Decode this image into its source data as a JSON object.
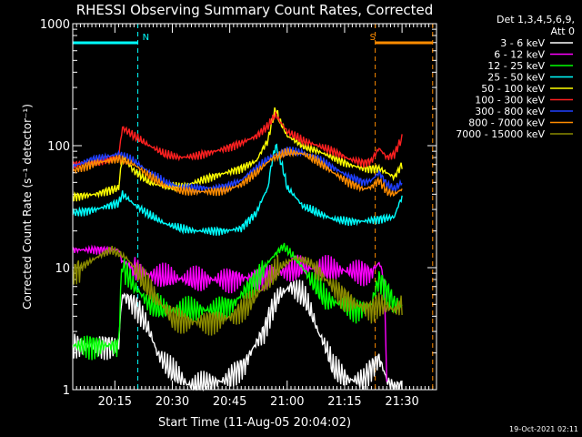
{
  "chart_data": {
    "type": "line",
    "title": "RHESSI Observing Summary Count Rates, Corrected",
    "xlabel": "Start Time (11-Aug-05 20:04:02)",
    "ylabel": "Corrected Count Rate (s⁻¹ detector⁻¹)",
    "yscale": "log",
    "xlim_minutes": [
      0,
      95
    ],
    "ylim": [
      1,
      1000
    ],
    "x_ticks": [
      {
        "minute": 11,
        "label": "20:15"
      },
      {
        "minute": 26,
        "label": "20:30"
      },
      {
        "minute": 41,
        "label": "20:45"
      },
      {
        "minute": 56,
        "label": "21:00"
      },
      {
        "minute": 71,
        "label": "21:15"
      },
      {
        "minute": 86,
        "label": "21:30"
      }
    ],
    "y_ticks": [
      {
        "value": 1,
        "label": "1"
      },
      {
        "value": 10,
        "label": "10"
      },
      {
        "value": 100,
        "label": "100"
      },
      {
        "value": 1000,
        "label": "1000"
      }
    ],
    "legend": {
      "position": "right",
      "header": [
        "Det 1,3,4,5,6,9,",
        "Att 0"
      ]
    },
    "markers": [
      {
        "label": "N",
        "start": 0,
        "end": 17,
        "color": "#00ffff"
      },
      {
        "label": "S",
        "start": 79,
        "end": 94,
        "color": "#ff8c00"
      }
    ],
    "series": [
      {
        "name": "3 - 6 keV",
        "color": "#ffffff",
        "x": [
          0,
          12,
          13,
          16,
          20,
          22,
          25,
          30,
          35,
          40,
          45,
          50,
          54,
          57,
          60,
          64,
          68,
          72,
          76,
          80,
          82,
          84,
          86
        ],
        "y": [
          2.3,
          2.3,
          6,
          5,
          3,
          2,
          1.5,
          1.1,
          1.1,
          1.2,
          1.6,
          3,
          6,
          7,
          6,
          3,
          1.5,
          1.2,
          1.2,
          1.8,
          1.2,
          1,
          1
        ]
      },
      {
        "name": "6 - 12 keV",
        "color": "#ff00ff",
        "x": [
          0,
          12,
          13,
          18,
          22,
          30,
          40,
          50,
          60,
          70,
          78,
          80,
          81,
          82
        ],
        "y": [
          14,
          14,
          11,
          9,
          8.5,
          8,
          8,
          8.5,
          10,
          9.5,
          9,
          11,
          9,
          1
        ]
      },
      {
        "name": "12 - 25 keV",
        "color": "#00ff00",
        "x": [
          0,
          12,
          13,
          16,
          20,
          24,
          30,
          36,
          42,
          48,
          52,
          55,
          58,
          62,
          66,
          70,
          74,
          78,
          80,
          84,
          86
        ],
        "y": [
          2.3,
          2.3,
          10,
          7,
          5,
          4.5,
          4.5,
          4.5,
          5,
          8,
          12,
          15,
          12,
          8,
          5.5,
          5,
          4.5,
          5,
          8,
          5,
          5
        ]
      },
      {
        "name": "25 - 50 keV",
        "color": "#00ffff",
        "x": [
          0,
          6,
          12,
          13,
          16,
          20,
          24,
          28,
          32,
          36,
          40,
          44,
          48,
          51,
          53,
          54,
          56,
          60,
          64,
          68,
          72,
          76,
          80,
          84,
          86
        ],
        "y": [
          28,
          30,
          34,
          40,
          33,
          27,
          23,
          21,
          20,
          20,
          20,
          21,
          28,
          45,
          100,
          80,
          45,
          32,
          28,
          25,
          24,
          24,
          25,
          26,
          38
        ]
      },
      {
        "name": "50 - 100 keV",
        "color": "#ffff00",
        "x": [
          0,
          6,
          12,
          13,
          16,
          20,
          24,
          28,
          32,
          36,
          40,
          44,
          48,
          51,
          53,
          54,
          56,
          60,
          64,
          68,
          72,
          76,
          80,
          84,
          86
        ],
        "y": [
          38,
          40,
          45,
          80,
          62,
          50,
          46,
          46,
          50,
          55,
          60,
          65,
          75,
          110,
          200,
          160,
          120,
          100,
          90,
          80,
          70,
          65,
          65,
          55,
          70
        ]
      },
      {
        "name": "100 - 300 keV",
        "color": "#ff2020",
        "x": [
          0,
          6,
          12,
          13,
          16,
          20,
          24,
          28,
          32,
          36,
          40,
          44,
          48,
          51,
          53,
          54,
          56,
          60,
          64,
          68,
          72,
          76,
          78,
          80,
          82,
          84,
          86
        ],
        "y": [
          70,
          74,
          80,
          140,
          120,
          100,
          85,
          80,
          82,
          88,
          95,
          105,
          120,
          145,
          180,
          160,
          130,
          110,
          100,
          90,
          78,
          72,
          75,
          95,
          80,
          85,
          115
        ]
      },
      {
        "name": "300 - 800 keV",
        "color": "#2040ff",
        "x": [
          0,
          6,
          12,
          16,
          20,
          24,
          28,
          32,
          36,
          40,
          44,
          48,
          52,
          56,
          60,
          64,
          68,
          72,
          76,
          78,
          80,
          82,
          84,
          86
        ],
        "y": [
          68,
          78,
          85,
          75,
          60,
          50,
          46,
          45,
          45,
          46,
          52,
          65,
          82,
          90,
          88,
          78,
          66,
          56,
          50,
          52,
          60,
          48,
          44,
          50
        ]
      },
      {
        "name": "800 - 7000 keV",
        "color": "#ff8c00",
        "x": [
          0,
          6,
          12,
          16,
          20,
          24,
          28,
          32,
          36,
          40,
          44,
          48,
          52,
          56,
          60,
          64,
          68,
          72,
          76,
          78,
          80,
          82,
          84,
          86
        ],
        "y": [
          62,
          72,
          78,
          70,
          56,
          47,
          43,
          42,
          42,
          43,
          48,
          60,
          78,
          88,
          86,
          74,
          60,
          50,
          44,
          46,
          52,
          42,
          40,
          44
        ]
      },
      {
        "name": "7000 - 15000 keV",
        "color": "#8b8b00",
        "x": [
          0,
          6,
          10,
          14,
          18,
          22,
          26,
          30,
          34,
          38,
          42,
          46,
          50,
          54,
          58,
          62,
          66,
          70,
          74,
          78,
          80,
          84,
          86
        ],
        "y": [
          9,
          12,
          14,
          12,
          8,
          5.5,
          3.8,
          3.6,
          3.6,
          3.7,
          4,
          5,
          7,
          10,
          12,
          11,
          8,
          6,
          5,
          4.5,
          5,
          4.5,
          5
        ]
      }
    ],
    "footer_timestamp": "19-Oct-2021 02:11"
  }
}
